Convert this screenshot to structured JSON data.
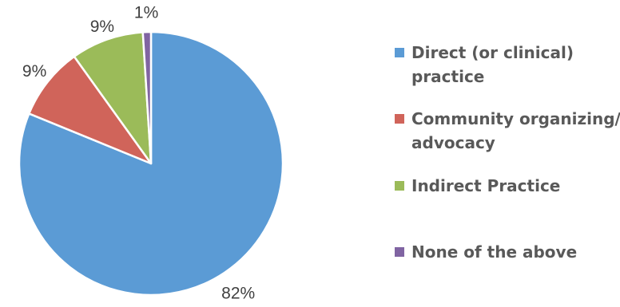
{
  "chart_data": {
    "type": "pie",
    "title": "",
    "categories": [
      "Direct (or clinical) practice",
      "Community organizing/ advocacy",
      "Indirect Practice",
      "None of the above"
    ],
    "values": [
      82,
      9,
      9,
      1
    ],
    "labels": [
      "82%",
      "9%",
      "9%",
      "1%"
    ],
    "legend": {
      "position": "right",
      "entries": [
        {
          "lines": [
            "Direct (or clinical)",
            "practice"
          ],
          "color": "#5B9BD5"
        },
        {
          "lines": [
            "Community organizing/",
            "advocacy"
          ],
          "color": "#D0645A"
        },
        {
          "lines": [
            "Indirect Practice"
          ],
          "color": "#9BBB59"
        },
        {
          "lines": [
            "None of the above"
          ],
          "color": "#8064A2"
        }
      ]
    },
    "colors": [
      "#5B9BD5",
      "#D0645A",
      "#9BBB59",
      "#8064A2"
    ]
  }
}
